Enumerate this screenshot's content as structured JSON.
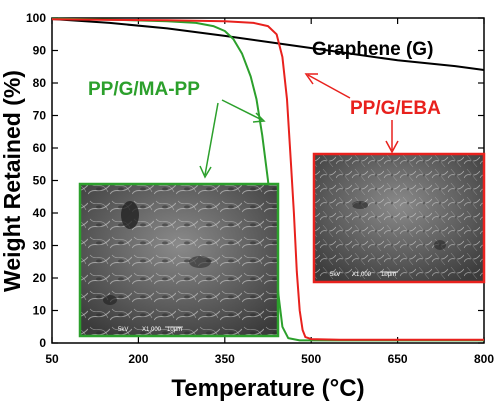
{
  "chart_data": {
    "type": "line",
    "xlabel": "Temperature (°C)",
    "ylabel": "Weight Retained (%)",
    "xlim": [
      50,
      800
    ],
    "ylim": [
      0,
      100
    ],
    "xticks": [
      50,
      200,
      350,
      500,
      650,
      800
    ],
    "yticks": [
      0,
      10,
      20,
      30,
      40,
      50,
      60,
      70,
      80,
      90,
      100
    ],
    "grid": false,
    "series": [
      {
        "name": "Graphene (G)",
        "color": "#000000",
        "x": [
          50,
          150,
          250,
          350,
          450,
          550,
          650,
          750,
          800
        ],
        "y": [
          99.7,
          98.5,
          96.8,
          94.5,
          92.0,
          89.5,
          87.0,
          85.2,
          84.0
        ]
      },
      {
        "name": "PP/G/MA-PP",
        "color": "#2ca02c",
        "x": [
          50,
          150,
          250,
          300,
          330,
          350,
          365,
          380,
          395,
          405,
          415,
          425,
          435,
          443,
          450,
          460,
          480,
          550,
          650,
          800
        ],
        "y": [
          99.8,
          99.5,
          99.0,
          98.5,
          97.5,
          96.0,
          93.5,
          89.0,
          82.0,
          75.0,
          64.0,
          50.0,
          32.0,
          15.0,
          5.0,
          1.5,
          0.8,
          0.8,
          0.8,
          0.8
        ]
      },
      {
        "name": "PP/G/EBA",
        "color": "#e8211d",
        "x": [
          50,
          150,
          250,
          350,
          400,
          425,
          440,
          450,
          458,
          465,
          470,
          475,
          480,
          485,
          490,
          500,
          550,
          650,
          800
        ],
        "y": [
          99.6,
          99.4,
          99.3,
          99.0,
          98.5,
          97.5,
          95.0,
          88.0,
          75.0,
          55.0,
          40.0,
          22.0,
          10.0,
          4.0,
          1.8,
          1.2,
          1.0,
          1.0,
          1.0
        ]
      }
    ],
    "sem_images": [
      {
        "name": "PP/G/MA-PP",
        "frame_color": "#2ca02c",
        "caption": [
          "5kV",
          "X1,000",
          "10μm"
        ]
      },
      {
        "name": "PP/G/EBA",
        "frame_color": "#e8211d",
        "caption": [
          "5kV",
          "X1,000",
          "10μm"
        ]
      }
    ]
  }
}
